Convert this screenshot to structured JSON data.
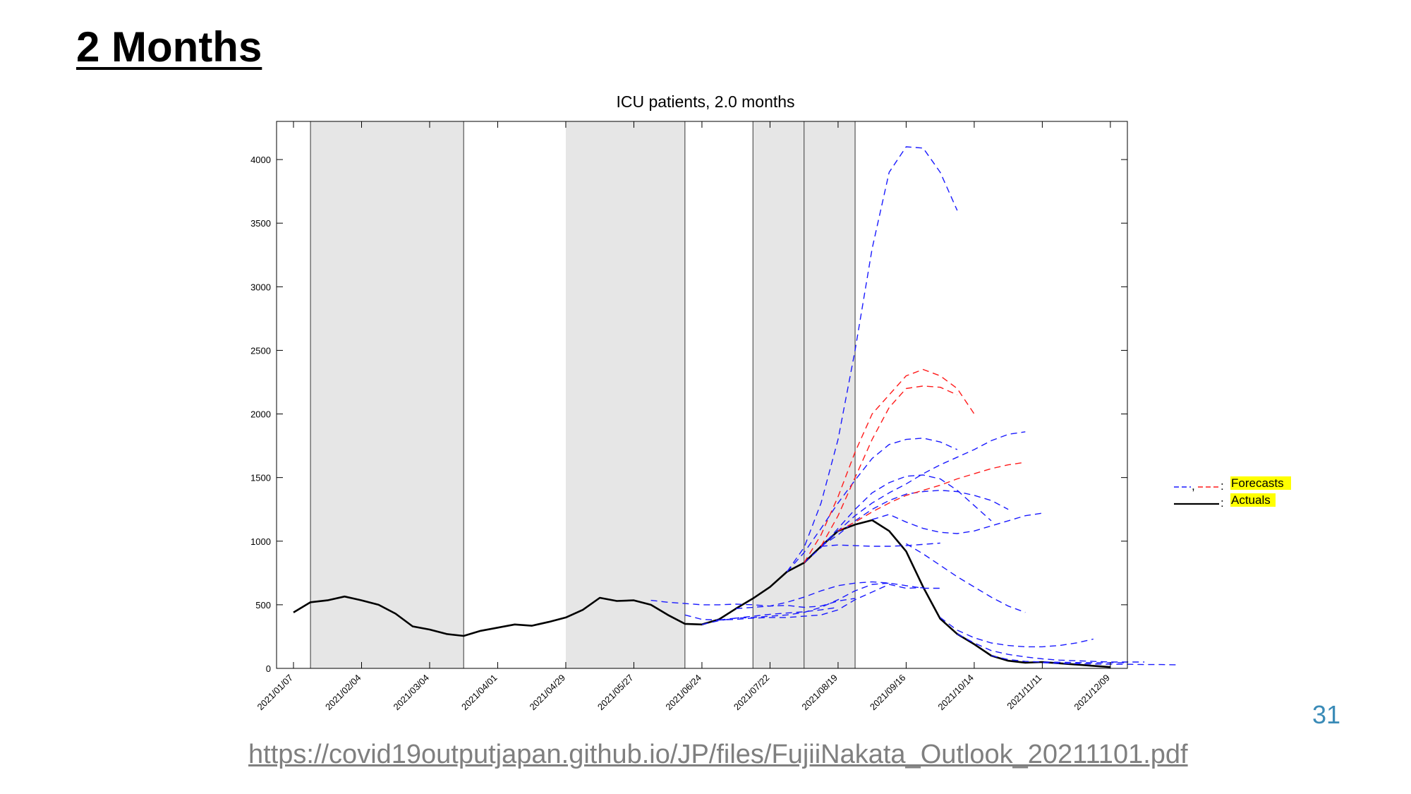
{
  "slide": {
    "title": "2 Months",
    "page_number": "31",
    "source_url": "https://covid19outputjapan.github.io/JP/files/FujiiNakata_Outlook_20211101.pdf"
  },
  "colors": {
    "actual": "#000000",
    "forecast_blue": "#1a1aff",
    "forecast_red": "#ff1a1a",
    "shade": "#e6e6e6",
    "legend_highlight": "#ffff00"
  },
  "chart_data": {
    "type": "line",
    "title": "ICU patients, 2.0 months",
    "x_unit": "weeks",
    "xlim": [
      "2021/01/07",
      "2021/12/16"
    ],
    "ylim": [
      0,
      4300
    ],
    "yticks": [
      0,
      500,
      1000,
      1500,
      2000,
      2500,
      3000,
      3500,
      4000
    ],
    "xticks": [
      "2021/01/07",
      "2021/02/04",
      "2021/03/04",
      "2021/04/01",
      "2021/04/29",
      "2021/05/27",
      "2021/06/24",
      "2021/07/22",
      "2021/08/19",
      "2021/09/16",
      "2021/10/14",
      "2021/11/11",
      "2021/12/09"
    ],
    "grid": false,
    "shaded_periods": [
      [
        "2021/01/14",
        "2021/03/18"
      ],
      [
        "2021/04/29",
        "2021/06/17"
      ],
      [
        "2021/07/15",
        "2021/08/05"
      ],
      [
        "2021/08/05",
        "2021/08/26"
      ]
    ],
    "vertical_lines": [
      "2021/03/18",
      "2021/06/17",
      "2021/07/15",
      "2021/08/05",
      "2021/08/26"
    ],
    "legend": {
      "position": "right",
      "entries": [
        {
          "label": "Forecasts",
          "style": "dashed",
          "colors": [
            "#1a1aff",
            "#ff1a1a"
          ]
        },
        {
          "label": "Actuals",
          "style": "solid",
          "colors": [
            "#000000"
          ]
        }
      ]
    },
    "series": [
      {
        "type": "actual",
        "color": "#000000",
        "start": "2021/01/07",
        "values": [
          440,
          520,
          535,
          565,
          535,
          500,
          430,
          330,
          305,
          270,
          255,
          295,
          320,
          345,
          335,
          365,
          400,
          460,
          555,
          530,
          535,
          500,
          420,
          350,
          345,
          385,
          470,
          550,
          640,
          760,
          830,
          960,
          1080,
          1130,
          1165,
          1080,
          920,
          640,
          390,
          270,
          190,
          100,
          60,
          45,
          50,
          40,
          30,
          20,
          10
        ]
      },
      {
        "type": "forecast",
        "color": "#1a1aff",
        "start": "2021/06/03",
        "values": [
          535,
          520,
          510,
          500,
          500,
          505,
          500,
          490,
          495,
          480,
          490,
          530,
          550
        ]
      },
      {
        "type": "forecast",
        "color": "#1a1aff",
        "start": "2021/06/17",
        "values": [
          420,
          385,
          380,
          385,
          395,
          400,
          400,
          410,
          420,
          460,
          540,
          600,
          660,
          630,
          635
        ]
      },
      {
        "type": "forecast",
        "color": "#1a1aff",
        "start": "2021/06/24",
        "values": [
          345,
          375,
          395,
          410,
          425,
          435,
          445,
          460,
          480
        ]
      },
      {
        "type": "forecast",
        "color": "#1a1aff",
        "start": "2021/07/01",
        "values": [
          380,
          395,
          400,
          410,
          420,
          440,
          480,
          540,
          610,
          660,
          670
        ]
      },
      {
        "type": "forecast",
        "color": "#1a1aff",
        "start": "2021/07/08",
        "values": [
          470,
          480,
          490,
          520,
          560,
          610,
          650,
          670,
          680,
          670,
          650,
          630,
          630
        ]
      },
      {
        "type": "forecast",
        "color": "#1a1aff",
        "start": "2021/07/29",
        "values": [
          760,
          950,
          1300,
          1800,
          2500,
          3300,
          3900,
          4100,
          4090,
          3900,
          3600
        ]
      },
      {
        "type": "forecast",
        "color": "#1a1aff",
        "start": "2021/07/29",
        "values": [
          760,
          910,
          1100,
          1300,
          1480,
          1650,
          1760,
          1800,
          1810,
          1780,
          1720
        ]
      },
      {
        "type": "forecast",
        "color": "#1a1aff",
        "start": "2021/08/05",
        "values": [
          830,
          950,
          1100,
          1250,
          1380,
          1460,
          1510,
          1520,
          1490,
          1400,
          1280,
          1160
        ]
      },
      {
        "type": "forecast",
        "color": "#1a1aff",
        "start": "2021/08/12",
        "values": [
          960,
          1050,
          1160,
          1250,
          1320,
          1370,
          1390,
          1400,
          1390,
          1360,
          1320,
          1250
        ]
      },
      {
        "type": "forecast",
        "color": "#1a1aff",
        "start": "2021/08/12",
        "values": [
          960,
          1080,
          1200,
          1300,
          1380,
          1450,
          1530,
          1600,
          1660,
          1720,
          1790,
          1840,
          1860
        ]
      },
      {
        "type": "forecast",
        "color": "#1a1aff",
        "start": "2021/08/12",
        "values": [
          960,
          970,
          965,
          960,
          960,
          965,
          975,
          985
        ]
      },
      {
        "type": "forecast",
        "color": "#1a1aff",
        "start": "2021/09/02",
        "values": [
          1170,
          1210,
          1150,
          1100,
          1070,
          1060,
          1080,
          1120,
          1160,
          1200,
          1220
        ]
      },
      {
        "type": "forecast",
        "color": "#1a1aff",
        "start": "2021/09/16",
        "values": [
          980,
          900,
          810,
          720,
          640,
          560,
          490,
          440
        ]
      },
      {
        "type": "forecast",
        "color": "#1a1aff",
        "start": "2021/09/30",
        "values": [
          400,
          300,
          240,
          200,
          180,
          170,
          170,
          180,
          200,
          230
        ]
      },
      {
        "type": "forecast",
        "color": "#1a1aff",
        "start": "2021/10/07",
        "values": [
          270,
          200,
          140,
          110,
          90,
          75,
          65,
          60,
          55,
          50,
          50,
          50
        ]
      },
      {
        "type": "forecast",
        "color": "#1a1aff",
        "start": "2021/10/21",
        "values": [
          100,
          70,
          55,
          50,
          48,
          46,
          45,
          45,
          44
        ]
      },
      {
        "type": "forecast",
        "color": "#1a1aff",
        "start": "2021/11/11",
        "values": [
          45,
          40,
          38,
          35,
          33,
          32,
          30,
          30,
          28
        ]
      },
      {
        "type": "forecast",
        "color": "#ff1a1a",
        "start": "2021/08/05",
        "values": [
          830,
          1050,
          1350,
          1700,
          2000,
          2150,
          2300,
          2350,
          2300,
          2200,
          2000
        ]
      },
      {
        "type": "forecast",
        "color": "#ff1a1a",
        "start": "2021/08/12",
        "values": [
          960,
          1200,
          1500,
          1800,
          2050,
          2200,
          2220,
          2210,
          2150
        ]
      },
      {
        "type": "forecast",
        "color": "#ff1a1a",
        "start": "2021/08/19",
        "values": [
          1080,
          1150,
          1230,
          1300,
          1360,
          1400,
          1440,
          1490,
          1530,
          1570,
          1600,
          1620
        ]
      }
    ]
  }
}
